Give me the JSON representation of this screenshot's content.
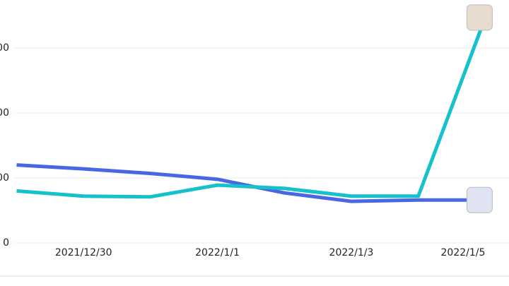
{
  "chart_data": {
    "type": "line",
    "categories": [
      null,
      "2021/12/30",
      null,
      "2022/1/1",
      null,
      "2022/1/3",
      null,
      "2022/1/5"
    ],
    "series": [
      {
        "color": "#4a66e0",
        "values": [
          120,
          114,
          107,
          98,
          77,
          64,
          66,
          66
        ]
      },
      {
        "color": "#16c1cc",
        "values": [
          80,
          72,
          71,
          89,
          84,
          72,
          72,
          347
        ]
      }
    ],
    "ylim": [
      0,
      374
    ],
    "yticks": [
      {
        "value": 0,
        "label": "0"
      },
      {
        "value": 100,
        "label": "00"
      },
      {
        "value": 200,
        "label": "00"
      },
      {
        "value": 300,
        "label": "00"
      }
    ],
    "grid": true
  }
}
